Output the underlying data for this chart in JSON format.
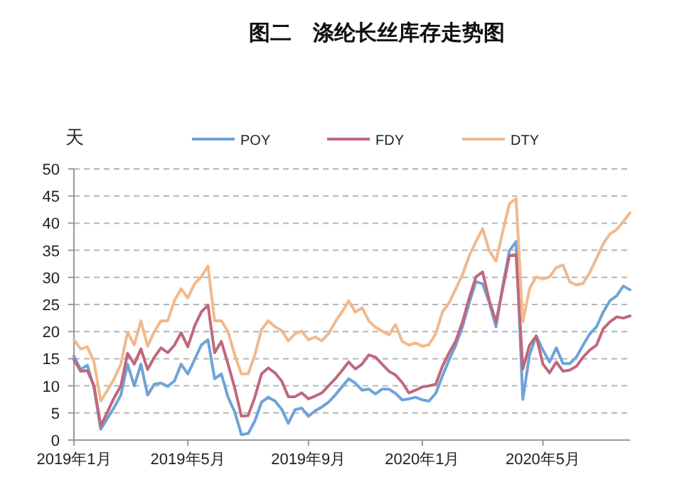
{
  "chart_data": {
    "type": "line",
    "title": "图二　涤纶长丝库存走势图",
    "ylabel": "天",
    "categories": [
      "2019年1月",
      null,
      null,
      null,
      null,
      null,
      null,
      null,
      null,
      null,
      null,
      null,
      null,
      null,
      null,
      null,
      null,
      "2019年5月",
      null,
      null,
      null,
      null,
      null,
      null,
      null,
      null,
      null,
      null,
      null,
      null,
      null,
      null,
      null,
      null,
      null,
      "2019年9月",
      null,
      null,
      null,
      null,
      null,
      null,
      null,
      null,
      null,
      null,
      null,
      null,
      null,
      null,
      null,
      null,
      "2020年1月",
      null,
      null,
      null,
      null,
      null,
      null,
      null,
      null,
      null,
      null,
      null,
      null,
      null,
      null,
      null,
      null,
      null,
      "2020年5月",
      null,
      null,
      null,
      null,
      null,
      null,
      null,
      null,
      null,
      null,
      null,
      null,
      null
    ],
    "series": [
      {
        "name": "POY",
        "color": "#6fa3d8",
        "values": [
          15.5,
          13,
          13.8,
          9.6,
          2,
          4,
          6,
          8.3,
          14,
          10,
          14,
          8.3,
          10.3,
          10.5,
          9.9,
          10.9,
          14,
          12.2,
          14.8,
          17.5,
          18.5,
          11.3,
          12.2,
          7.9,
          5.2,
          1,
          1.2,
          3.5,
          7,
          7.9,
          7.2,
          5.7,
          3.1,
          5.6,
          5.9,
          4.4,
          5.4,
          6.1,
          7,
          8.3,
          9.8,
          11.3,
          10.5,
          9.2,
          9.4,
          8.5,
          9.4,
          9.4,
          8.6,
          7.4,
          7.6,
          7.9,
          7.4,
          7.2,
          8.6,
          11.8,
          14.8,
          17.5,
          20.9,
          25.3,
          29.2,
          28.8,
          25.3,
          20.9,
          28.4,
          34.9,
          36.6,
          7.5,
          15.7,
          19.2,
          16.6,
          14.4,
          17,
          14.1,
          14.1,
          15.3,
          17.5,
          19.6,
          20.9,
          23.6,
          25.7,
          26.6,
          28.4,
          27.7
        ]
      },
      {
        "name": "FDY",
        "color": "#c0687c",
        "values": [
          14.8,
          12.7,
          12.8,
          10,
          2.6,
          5.2,
          7.8,
          10,
          16,
          14,
          16.8,
          13,
          15.3,
          17,
          16.1,
          17.5,
          19.8,
          17.2,
          21,
          23.6,
          24.9,
          16.1,
          18.2,
          14,
          9.6,
          4.4,
          4.5,
          7.9,
          12.2,
          13.3,
          12.4,
          10.9,
          8,
          8,
          8.7,
          7.6,
          8.1,
          8.7,
          10,
          11.3,
          12.8,
          14.4,
          13.1,
          14,
          15.7,
          15.3,
          14,
          12.7,
          12,
          10.6,
          8.7,
          9.2,
          9.8,
          10,
          10.3,
          13.6,
          16.1,
          18.3,
          21.8,
          26.2,
          30.1,
          31,
          25.7,
          21.8,
          27.9,
          34,
          34.2,
          13.1,
          17.5,
          19.2,
          14,
          12.4,
          14.4,
          12.7,
          12.9,
          13.6,
          15.3,
          16.6,
          17.5,
          20.5,
          21.8,
          22.7,
          22.5,
          22.9
        ]
      },
      {
        "name": "DTY",
        "color": "#f0b98d",
        "values": [
          18.5,
          16.8,
          17.2,
          14.4,
          7.2,
          9.2,
          11.3,
          14,
          19.9,
          17.5,
          22,
          17.3,
          20,
          22,
          22,
          25.7,
          27.9,
          26.2,
          28.8,
          30.1,
          32.1,
          22,
          22,
          20,
          15.7,
          12.2,
          12.2,
          15.7,
          20.4,
          22,
          20.9,
          20.2,
          18.3,
          19.6,
          20.1,
          18.5,
          19,
          18.3,
          19.6,
          21.8,
          23.6,
          25.7,
          23.6,
          24.4,
          22,
          20.8,
          20.1,
          19.4,
          21.3,
          18.2,
          17.5,
          17.9,
          17.3,
          17.6,
          19.6,
          23.6,
          25.3,
          27.9,
          30.5,
          34,
          36.6,
          39,
          34.9,
          33,
          38.4,
          43.6,
          44.5,
          21.8,
          27.9,
          30.1,
          29.7,
          30.1,
          31.8,
          32.3,
          29.2,
          28.6,
          28.9,
          30.9,
          33.5,
          36.2,
          38,
          38.8,
          40.3,
          41.9
        ]
      }
    ],
    "ylim": [
      0,
      50
    ],
    "yticks": [
      0,
      5,
      10,
      15,
      20,
      25,
      30,
      35,
      40,
      45,
      50
    ],
    "grid": "y",
    "legend": "top"
  }
}
